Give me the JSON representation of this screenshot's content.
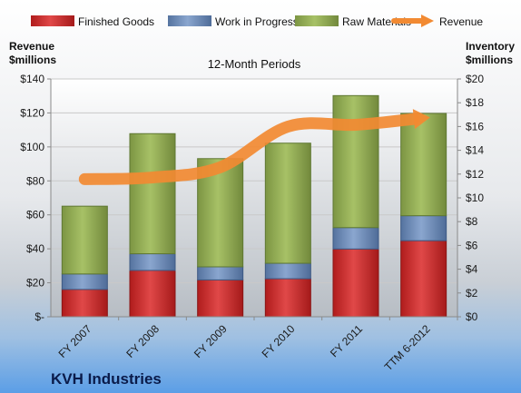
{
  "company": "KVH Industries",
  "chart_data": {
    "type": "bar",
    "subtitle": "12-Month Periods",
    "categories": [
      "FY 2007",
      "FY 2008",
      "FY 2009",
      "FY 2010",
      "FY 2011",
      "TTM 6-2012"
    ],
    "series": [
      {
        "name": "Finished Goods",
        "values": [
          2.3,
          3.9,
          3.1,
          3.2,
          5.7,
          6.4
        ],
        "axis": "right",
        "stacked": true,
        "color": "#d03a3a"
      },
      {
        "name": "Work in Progress",
        "values": [
          1.3,
          1.4,
          1.1,
          1.3,
          1.8,
          2.1
        ],
        "axis": "right",
        "stacked": true,
        "color": "#6f8fbf"
      },
      {
        "name": "Raw Materials",
        "values": [
          5.7,
          10.1,
          9.1,
          10.1,
          11.1,
          8.6
        ],
        "axis": "right",
        "stacked": true,
        "color": "#9bb55a"
      },
      {
        "name": "Revenue",
        "values": [
          81,
          82,
          88,
          112,
          113,
          117
        ],
        "axis": "left",
        "type": "line",
        "color": "#f28a32"
      }
    ],
    "left_axis": {
      "label_line1": "Revenue",
      "label_line2": "$millions",
      "ylim": [
        0,
        140
      ],
      "ticks": [
        {
          "v": 0,
          "label": "$-"
        },
        {
          "v": 20,
          "label": "$20"
        },
        {
          "v": 40,
          "label": "$40"
        },
        {
          "v": 60,
          "label": "$60"
        },
        {
          "v": 80,
          "label": "$80"
        },
        {
          "v": 100,
          "label": "$100"
        },
        {
          "v": 120,
          "label": "$120"
        },
        {
          "v": 140,
          "label": "$140"
        }
      ]
    },
    "right_axis": {
      "label_line1": "Inventory",
      "label_line2": "$millions",
      "ylim": [
        0,
        20
      ],
      "ticks": [
        {
          "v": 0,
          "label": "$0"
        },
        {
          "v": 2,
          "label": "$2"
        },
        {
          "v": 4,
          "label": "$4"
        },
        {
          "v": 6,
          "label": "$6"
        },
        {
          "v": 8,
          "label": "$8"
        },
        {
          "v": 10,
          "label": "$10"
        },
        {
          "v": 12,
          "label": "$12"
        },
        {
          "v": 14,
          "label": "$14"
        },
        {
          "v": 16,
          "label": "$16"
        },
        {
          "v": 18,
          "label": "$18"
        },
        {
          "v": 20,
          "label": "$20"
        }
      ]
    },
    "legend_position": "top",
    "grid": "horizontal"
  }
}
